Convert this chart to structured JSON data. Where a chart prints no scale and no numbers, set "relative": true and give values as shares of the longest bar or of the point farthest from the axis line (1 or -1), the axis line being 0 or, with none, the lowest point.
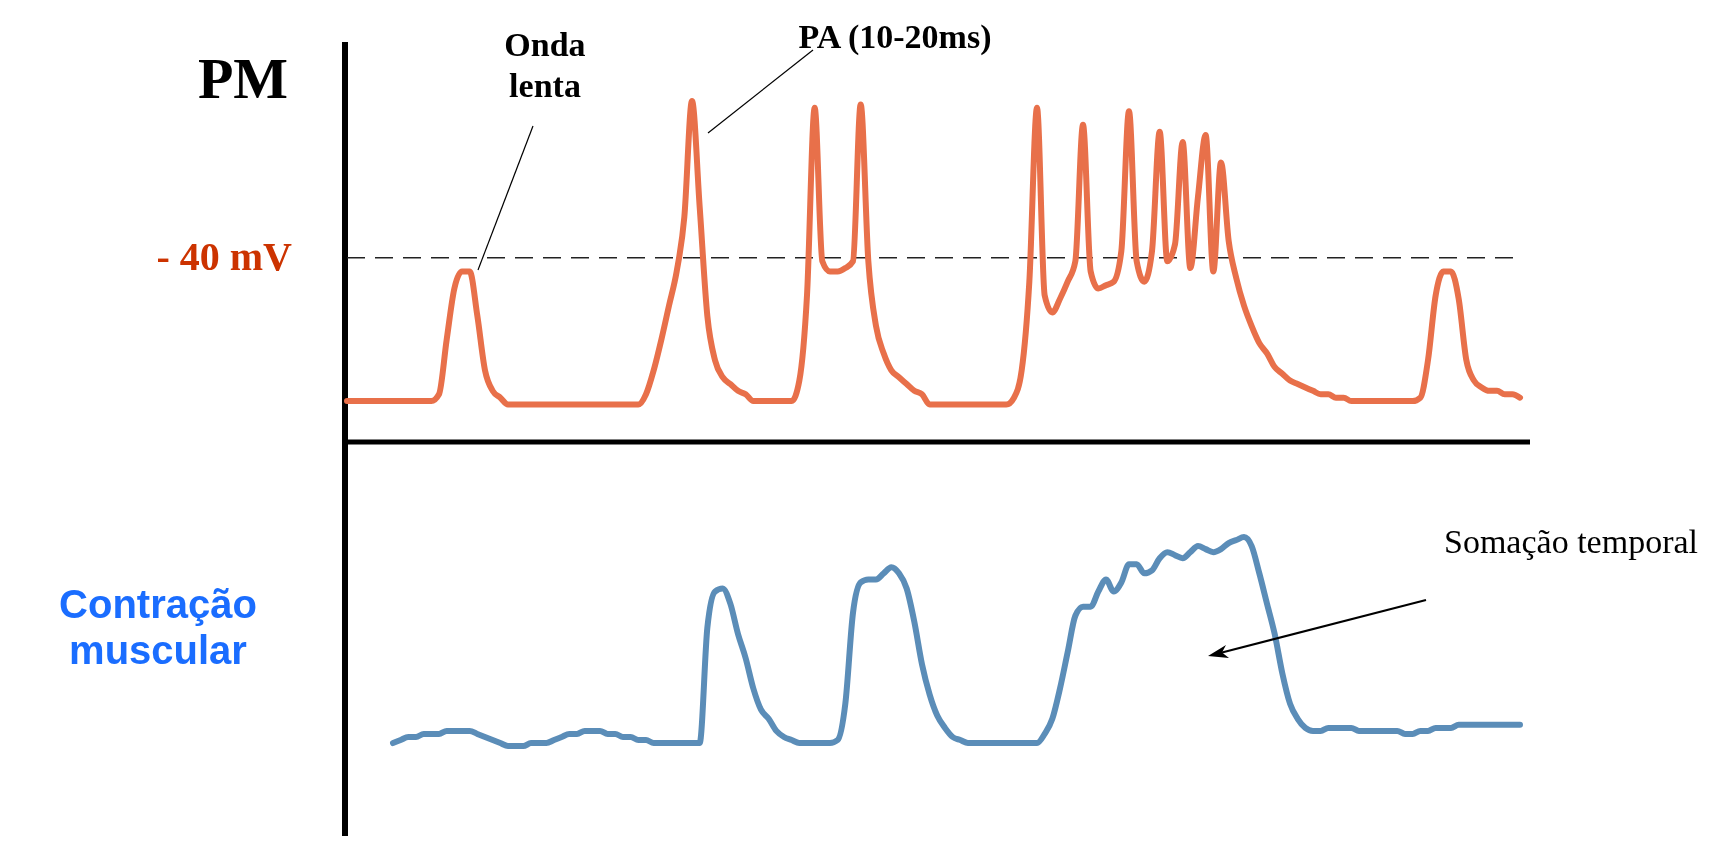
{
  "chart_data": [
    {
      "type": "line",
      "relative": true,
      "ylabel": "PM",
      "line_style": "solid",
      "marker": "none",
      "categories": [
        null,
        null,
        null,
        null,
        null,
        null,
        null,
        null,
        null,
        null,
        null,
        null,
        null,
        null,
        null,
        null,
        null,
        null,
        null,
        null,
        null,
        null,
        null,
        null,
        null,
        null,
        null,
        null,
        null,
        null,
        null,
        null,
        null,
        null,
        null,
        null,
        null,
        null,
        null,
        null,
        null,
        null,
        null,
        null,
        null,
        null,
        null,
        null,
        null,
        null,
        null,
        null,
        null,
        null,
        null,
        null,
        null,
        null,
        null,
        null,
        null,
        null,
        null,
        null,
        null,
        null,
        null,
        null,
        null,
        null,
        null,
        null,
        null,
        null,
        null,
        null,
        null,
        null,
        null,
        null,
        null,
        null,
        null,
        null,
        null,
        null,
        null,
        null,
        null,
        null,
        null,
        null,
        null,
        null,
        null,
        null,
        null,
        null,
        null,
        null,
        null,
        null,
        null,
        null,
        null,
        null,
        null,
        null,
        null,
        null,
        null,
        null,
        null,
        null,
        null,
        null,
        null,
        null,
        null,
        null,
        null,
        null,
        null,
        null,
        null,
        null,
        null,
        null,
        null,
        null,
        null,
        null,
        null,
        null,
        null,
        null,
        null,
        null,
        null,
        null,
        null,
        null,
        null,
        null,
        null,
        null,
        null,
        null,
        null,
        null,
        null,
        null,
        null,
        null
      ],
      "series": [
        {
          "color": "#e8704a",
          "values": [
            0.12,
            0.12,
            0.12,
            0.12,
            0.12,
            0.12,
            0.12,
            0.12,
            0.12,
            0.12,
            0.12,
            0.12,
            0.14,
            0.3,
            0.45,
            0.5,
            0.5,
            0.37,
            0.21,
            0.15,
            0.13,
            0.11,
            0.11,
            0.11,
            0.11,
            0.11,
            0.11,
            0.11,
            0.11,
            0.11,
            0.11,
            0.11,
            0.11,
            0.11,
            0.11,
            0.11,
            0.11,
            0.11,
            0.11,
            0.14,
            0.21,
            0.3,
            0.4,
            0.5,
            0.66,
            1,
            0.69,
            0.37,
            0.24,
            0.19,
            0.17,
            0.15,
            0.14,
            0.12,
            0.12,
            0.12,
            0.12,
            0.12,
            0.12,
            0.18,
            0.43,
            0.98,
            0.53,
            0.5,
            0.5,
            0.51,
            0.53,
            0.99,
            0.53,
            0.34,
            0.26,
            0.21,
            0.19,
            0.17,
            0.15,
            0.14,
            0.11,
            0.11,
            0.11,
            0.11,
            0.11,
            0.11,
            0.11,
            0.11,
            0.11,
            0.11,
            0.11,
            0.13,
            0.21,
            0.47,
            0.98,
            0.43,
            0.38,
            0.42,
            0.47,
            0.53,
            0.93,
            0.5,
            0.45,
            0.46,
            0.47,
            0.56,
            0.97,
            0.53,
            0.47,
            0.56,
            0.91,
            0.53,
            0.58,
            0.88,
            0.51,
            0.72,
            0.9,
            0.5,
            0.82,
            0.59,
            0.48,
            0.4,
            0.34,
            0.29,
            0.26,
            0.22,
            0.2,
            0.18,
            0.17,
            0.16,
            0.15,
            0.14,
            0.14,
            0.13,
            0.13,
            0.12,
            0.12,
            0.12,
            0.12,
            0.12,
            0.12,
            0.12,
            0.12,
            0.12,
            0.13,
            0.24,
            0.43,
            0.5,
            0.5,
            0.42,
            0.24,
            0.18,
            0.16,
            0.15,
            0.15,
            0.14,
            0.14,
            0.13
          ]
        }
      ],
      "ref_lines": [
        {
          "axis": "y",
          "value": 0.54,
          "label": "- 40 mV",
          "color": "#222222",
          "line_style": "dashed"
        }
      ],
      "annotations": [
        "Onda lenta",
        "PA (10-20ms)"
      ]
    },
    {
      "type": "line",
      "relative": true,
      "ylabel": "Contração muscular",
      "line_style": "solid",
      "marker": "none",
      "categories": [
        null,
        null,
        null,
        null,
        null,
        null,
        null,
        null,
        null,
        null,
        null,
        null,
        null,
        null,
        null,
        null,
        null,
        null,
        null,
        null,
        null,
        null,
        null,
        null,
        null,
        null,
        null,
        null,
        null,
        null,
        null,
        null,
        null,
        null,
        null,
        null,
        null,
        null,
        null,
        null,
        null,
        null,
        null,
        null,
        null,
        null,
        null,
        null,
        null,
        null,
        null,
        null,
        null,
        null,
        null,
        null,
        null,
        null,
        null,
        null,
        null,
        null,
        null,
        null,
        null,
        null,
        null,
        null,
        null,
        null,
        null,
        null,
        null,
        null,
        null,
        null,
        null,
        null,
        null,
        null,
        null,
        null,
        null,
        null,
        null,
        null,
        null,
        null,
        null,
        null,
        null,
        null,
        null,
        null,
        null,
        null,
        null,
        null,
        null,
        null,
        null,
        null,
        null,
        null,
        null,
        null,
        null,
        null,
        null,
        null,
        null,
        null,
        null,
        null,
        null,
        null,
        null,
        null,
        null,
        null,
        null,
        null,
        null,
        null,
        null,
        null,
        null,
        null,
        null,
        null,
        null,
        null,
        null,
        null,
        null,
        null,
        null,
        null,
        null,
        null,
        null,
        null,
        null,
        null,
        null,
        null,
        null,
        null,
        null,
        null,
        null,
        null,
        null,
        null
      ],
      "series": [
        {
          "color": "#5b8db8",
          "values": [
            null,
            null,
            null,
            null,
            null,
            null,
            0.32,
            0.33,
            0.34,
            0.34,
            0.35,
            0.35,
            0.35,
            0.36,
            0.36,
            0.36,
            0.36,
            0.35,
            0.34,
            0.33,
            0.32,
            0.31,
            0.31,
            0.31,
            0.32,
            0.32,
            0.32,
            0.33,
            0.34,
            0.35,
            0.35,
            0.36,
            0.36,
            0.36,
            0.35,
            0.35,
            0.34,
            0.34,
            0.33,
            0.33,
            0.32,
            0.32,
            0.32,
            0.32,
            0.32,
            0.32,
            0.32,
            0.7,
            0.82,
            0.83,
            0.78,
            0.68,
            0.6,
            0.5,
            0.43,
            0.4,
            0.36,
            0.34,
            0.33,
            0.32,
            0.32,
            0.32,
            0.32,
            0.32,
            0.33,
            0.45,
            0.75,
            0.85,
            0.86,
            0.86,
            0.88,
            0.9,
            0.88,
            0.83,
            0.72,
            0.58,
            0.48,
            0.41,
            0.37,
            0.34,
            0.33,
            0.32,
            0.32,
            0.32,
            0.32,
            0.32,
            0.32,
            0.32,
            0.32,
            0.32,
            0.32,
            0.35,
            0.4,
            0.5,
            0.62,
            0.74,
            0.77,
            0.77,
            0.82,
            0.86,
            0.82,
            0.85,
            0.91,
            0.91,
            0.88,
            0.89,
            0.93,
            0.95,
            0.94,
            0.93,
            0.95,
            0.97,
            0.96,
            0.95,
            0.96,
            0.98,
            0.99,
            1,
            0.97,
            0.88,
            0.78,
            0.68,
            0.55,
            0.45,
            0.4,
            0.37,
            0.36,
            0.36,
            0.37,
            0.37,
            0.37,
            0.37,
            0.36,
            0.36,
            0.36,
            0.36,
            0.36,
            0.36,
            0.35,
            0.35,
            0.36,
            0.36,
            0.37,
            0.37,
            0.37,
            0.38,
            0.38,
            0.38,
            0.38,
            0.38,
            0.38,
            0.38,
            0.38,
            0.38
          ]
        }
      ],
      "annotations": [
        "Somação temporal"
      ]
    }
  ]
}
